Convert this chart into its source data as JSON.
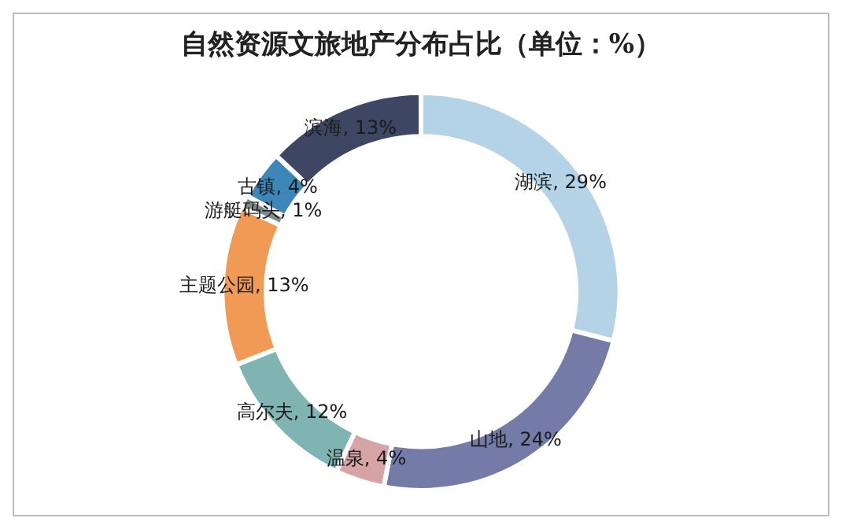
{
  "chart_data": {
    "type": "donut",
    "title": "自然资源文旅地产分布占比（单位：%）",
    "categories": [
      "湖滨",
      "山地",
      "温泉",
      "高尔夫",
      "主题公园",
      "游艇码头",
      "古镇",
      "滨海"
    ],
    "values": [
      29,
      24,
      4,
      12,
      13,
      1,
      4,
      13
    ],
    "colors": [
      "#b5d3e6",
      "#737ba6",
      "#d6a4a6",
      "#7fb4b2",
      "#f09a55",
      "#7f8a8c",
      "#3c86b8",
      "#3d4663"
    ],
    "value_labels": [
      ", 29%",
      ", 24%",
      ", 4%",
      ", 12%",
      ", 13%",
      ", 1%",
      ", 4%",
      ", 13%"
    ],
    "legend": false
  }
}
